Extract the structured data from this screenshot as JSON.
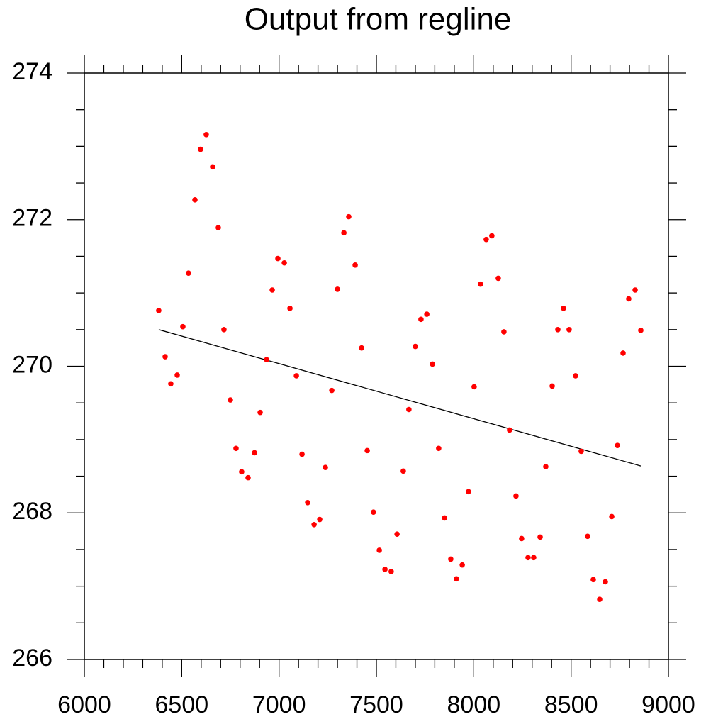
{
  "chart_data": {
    "type": "scatter",
    "title": "Output from regline",
    "x": [
      6382,
      6415,
      6444,
      6477,
      6506,
      6535,
      6568,
      6597,
      6626,
      6659,
      6688,
      6717,
      6750,
      6779,
      6808,
      6841,
      6874,
      6903,
      6936,
      6965,
      6994,
      7027,
      7056,
      7089,
      7118,
      7147,
      7180,
      7209,
      7238,
      7271,
      7300,
      7333,
      7358,
      7391,
      7424,
      7453,
      7485,
      7515,
      7544,
      7576,
      7606,
      7638,
      7667,
      7700,
      7729,
      7759,
      7788,
      7820,
      7850,
      7882,
      7911,
      7941,
      7973,
      8002,
      8035,
      8064,
      8093,
      8126,
      8155,
      8184,
      8217,
      8246,
      8279,
      8308,
      8341,
      8370,
      8403,
      8432,
      8461,
      8490,
      8523,
      8552,
      8585,
      8614,
      8647,
      8676,
      8709,
      8738,
      8767,
      8796,
      8829,
      8858
    ],
    "series": [
      {
        "color": "#ff0000",
        "values": [
          270.76,
          270.13,
          269.76,
          269.88,
          270.54,
          271.27,
          272.27,
          272.96,
          273.16,
          272.72,
          271.89,
          270.5,
          269.54,
          268.88,
          268.56,
          268.48,
          268.82,
          269.37,
          270.09,
          271.04,
          271.47,
          271.41,
          270.79,
          269.87,
          268.8,
          268.14,
          267.84,
          267.91,
          268.62,
          269.67,
          271.05,
          271.82,
          272.04,
          271.38,
          270.25,
          268.85,
          268.01,
          267.49,
          267.23,
          267.2,
          267.71,
          268.57,
          269.41,
          270.27,
          270.64,
          270.71,
          270.03,
          268.88,
          267.93,
          267.37,
          267.1,
          267.29,
          268.29,
          269.72,
          271.12,
          271.73,
          271.78,
          271.2,
          270.47,
          269.13,
          268.23,
          267.65,
          267.39,
          267.39,
          267.67,
          268.63,
          269.73,
          270.5,
          270.79,
          270.5,
          269.87,
          268.84,
          267.68,
          267.09,
          266.82,
          267.06,
          267.95,
          268.92,
          270.18,
          270.92,
          271.04,
          270.49
        ]
      }
    ],
    "regression": {
      "color": "#000000",
      "x": [
        6382,
        8858
      ],
      "values": [
        270.5,
        268.64
      ]
    },
    "xlim": [
      6000,
      9000
    ],
    "xticks": [
      6000,
      6500,
      7000,
      7500,
      8000,
      8500,
      9000
    ],
    "xminor_ticks": [
      6100,
      6200,
      6300,
      6400,
      6600,
      6700,
      6800,
      6900,
      7100,
      7200,
      7300,
      7400,
      7600,
      7700,
      7800,
      7900,
      8100,
      8200,
      8300,
      8400,
      8600,
      8700,
      8800,
      8900
    ],
    "ylim": [
      266,
      274
    ],
    "yticks": [
      266,
      268,
      270,
      272,
      274
    ],
    "yminor_ticks": [
      266.5,
      267,
      267.5,
      268.5,
      269,
      269.5,
      270.5,
      271,
      271.5,
      272.5,
      273,
      273.5
    ]
  }
}
